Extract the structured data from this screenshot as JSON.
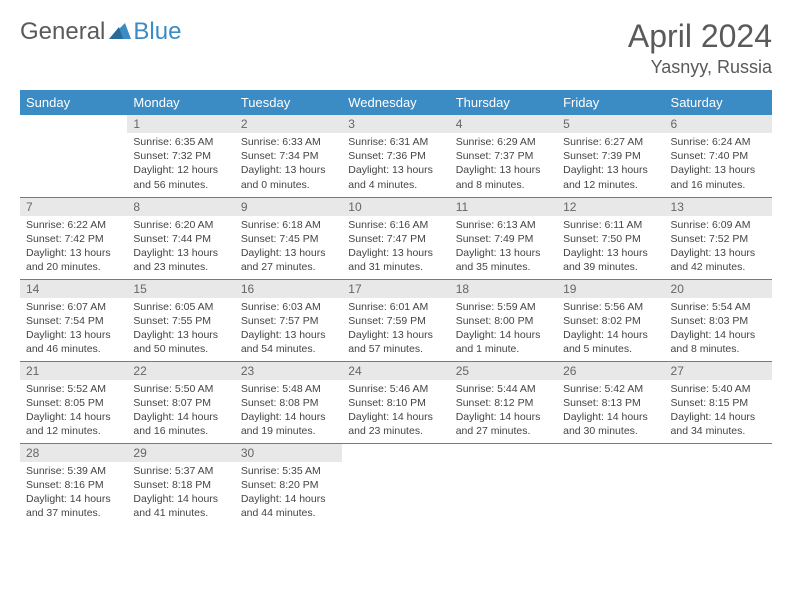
{
  "logo": {
    "text1": "General",
    "text2": "Blue"
  },
  "title": "April 2024",
  "location": "Yasnyy, Russia",
  "colors": {
    "header_bg": "#3b8bc4",
    "header_text": "#ffffff",
    "daynum_bg": "#e8e8e8",
    "border": "#3b8bc4",
    "logo_gray": "#5a5a5a",
    "logo_blue": "#3b8bc4"
  },
  "weekdays": [
    "Sunday",
    "Monday",
    "Tuesday",
    "Wednesday",
    "Thursday",
    "Friday",
    "Saturday"
  ],
  "weeks": [
    [
      null,
      {
        "n": "1",
        "sr": "6:35 AM",
        "ss": "7:32 PM",
        "dl": "12 hours and 56 minutes."
      },
      {
        "n": "2",
        "sr": "6:33 AM",
        "ss": "7:34 PM",
        "dl": "13 hours and 0 minutes."
      },
      {
        "n": "3",
        "sr": "6:31 AM",
        "ss": "7:36 PM",
        "dl": "13 hours and 4 minutes."
      },
      {
        "n": "4",
        "sr": "6:29 AM",
        "ss": "7:37 PM",
        "dl": "13 hours and 8 minutes."
      },
      {
        "n": "5",
        "sr": "6:27 AM",
        "ss": "7:39 PM",
        "dl": "13 hours and 12 minutes."
      },
      {
        "n": "6",
        "sr": "6:24 AM",
        "ss": "7:40 PM",
        "dl": "13 hours and 16 minutes."
      }
    ],
    [
      {
        "n": "7",
        "sr": "6:22 AM",
        "ss": "7:42 PM",
        "dl": "13 hours and 20 minutes."
      },
      {
        "n": "8",
        "sr": "6:20 AM",
        "ss": "7:44 PM",
        "dl": "13 hours and 23 minutes."
      },
      {
        "n": "9",
        "sr": "6:18 AM",
        "ss": "7:45 PM",
        "dl": "13 hours and 27 minutes."
      },
      {
        "n": "10",
        "sr": "6:16 AM",
        "ss": "7:47 PM",
        "dl": "13 hours and 31 minutes."
      },
      {
        "n": "11",
        "sr": "6:13 AM",
        "ss": "7:49 PM",
        "dl": "13 hours and 35 minutes."
      },
      {
        "n": "12",
        "sr": "6:11 AM",
        "ss": "7:50 PM",
        "dl": "13 hours and 39 minutes."
      },
      {
        "n": "13",
        "sr": "6:09 AM",
        "ss": "7:52 PM",
        "dl": "13 hours and 42 minutes."
      }
    ],
    [
      {
        "n": "14",
        "sr": "6:07 AM",
        "ss": "7:54 PM",
        "dl": "13 hours and 46 minutes."
      },
      {
        "n": "15",
        "sr": "6:05 AM",
        "ss": "7:55 PM",
        "dl": "13 hours and 50 minutes."
      },
      {
        "n": "16",
        "sr": "6:03 AM",
        "ss": "7:57 PM",
        "dl": "13 hours and 54 minutes."
      },
      {
        "n": "17",
        "sr": "6:01 AM",
        "ss": "7:59 PM",
        "dl": "13 hours and 57 minutes."
      },
      {
        "n": "18",
        "sr": "5:59 AM",
        "ss": "8:00 PM",
        "dl": "14 hours and 1 minute."
      },
      {
        "n": "19",
        "sr": "5:56 AM",
        "ss": "8:02 PM",
        "dl": "14 hours and 5 minutes."
      },
      {
        "n": "20",
        "sr": "5:54 AM",
        "ss": "8:03 PM",
        "dl": "14 hours and 8 minutes."
      }
    ],
    [
      {
        "n": "21",
        "sr": "5:52 AM",
        "ss": "8:05 PM",
        "dl": "14 hours and 12 minutes."
      },
      {
        "n": "22",
        "sr": "5:50 AM",
        "ss": "8:07 PM",
        "dl": "14 hours and 16 minutes."
      },
      {
        "n": "23",
        "sr": "5:48 AM",
        "ss": "8:08 PM",
        "dl": "14 hours and 19 minutes."
      },
      {
        "n": "24",
        "sr": "5:46 AM",
        "ss": "8:10 PM",
        "dl": "14 hours and 23 minutes."
      },
      {
        "n": "25",
        "sr": "5:44 AM",
        "ss": "8:12 PM",
        "dl": "14 hours and 27 minutes."
      },
      {
        "n": "26",
        "sr": "5:42 AM",
        "ss": "8:13 PM",
        "dl": "14 hours and 30 minutes."
      },
      {
        "n": "27",
        "sr": "5:40 AM",
        "ss": "8:15 PM",
        "dl": "14 hours and 34 minutes."
      }
    ],
    [
      {
        "n": "28",
        "sr": "5:39 AM",
        "ss": "8:16 PM",
        "dl": "14 hours and 37 minutes."
      },
      {
        "n": "29",
        "sr": "5:37 AM",
        "ss": "8:18 PM",
        "dl": "14 hours and 41 minutes."
      },
      {
        "n": "30",
        "sr": "5:35 AM",
        "ss": "8:20 PM",
        "dl": "14 hours and 44 minutes."
      },
      null,
      null,
      null,
      null
    ]
  ],
  "labels": {
    "sunrise": "Sunrise:",
    "sunset": "Sunset:",
    "daylight": "Daylight:"
  }
}
